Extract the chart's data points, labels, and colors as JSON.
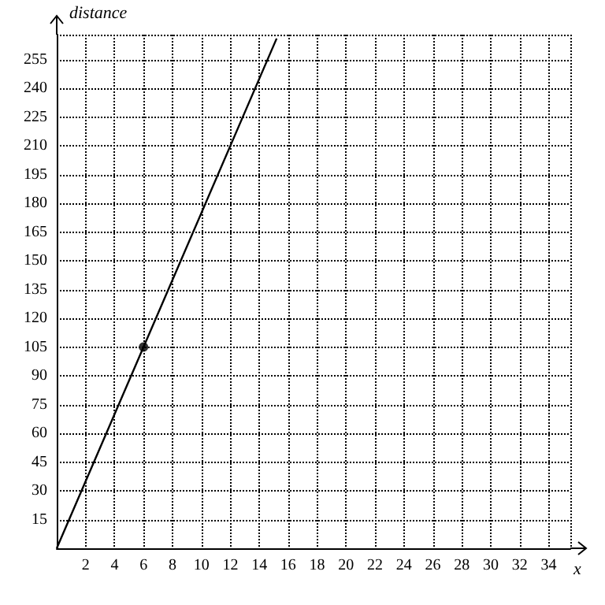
{
  "chart_data": {
    "type": "line",
    "xlabel": "x",
    "ylabel": "distance",
    "xlim": [
      0,
      35.5
    ],
    "ylim": [
      0,
      268
    ],
    "xticks": [
      2,
      4,
      6,
      8,
      10,
      12,
      14,
      16,
      18,
      20,
      22,
      24,
      26,
      28,
      30,
      32,
      34
    ],
    "yticks": [
      15,
      30,
      45,
      60,
      75,
      90,
      105,
      120,
      135,
      150,
      165,
      180,
      195,
      210,
      225,
      240,
      255
    ],
    "grid": true,
    "series": [
      {
        "color": "#000000",
        "x": [
          0,
          6,
          15.2
        ],
        "values": [
          0,
          105,
          266
        ],
        "marker": "none",
        "line_style": "solid"
      },
      {
        "type": "scatter",
        "color": "#000000",
        "x": [
          6
        ],
        "values": [
          105
        ],
        "marker": "circle"
      }
    ]
  }
}
